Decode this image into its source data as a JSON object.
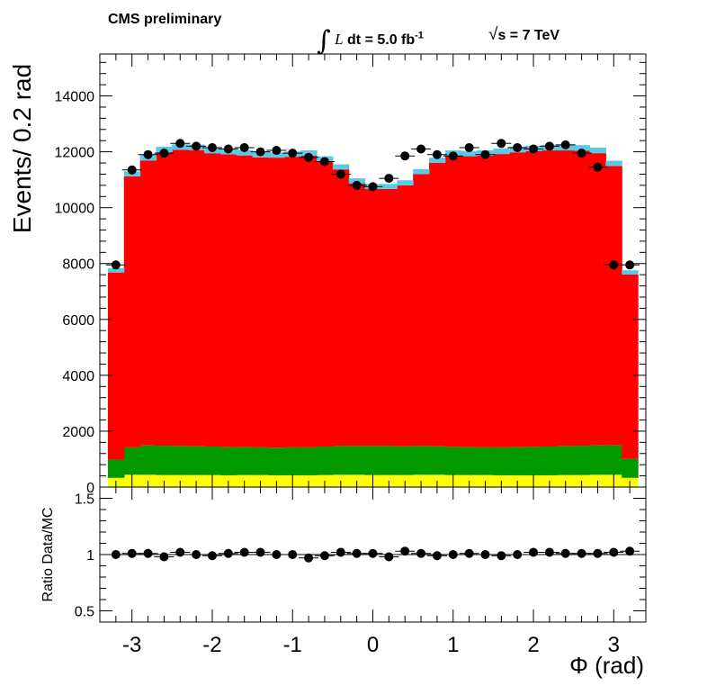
{
  "header": {
    "experiment": "CMS preliminary",
    "lumi_italic": "L",
    "lumi_rest": "dt = 5.0 fb",
    "lumi_exp": "-1",
    "energy_sqrt": "√",
    "energy_rest": "s = 7 TeV"
  },
  "colors": {
    "main_bkg": "#ff0000",
    "green_bkg": "#009900",
    "yellow_bkg": "#ffff00",
    "cyan_bkg": "#5bc8e8",
    "data_marker": "#000000"
  },
  "chart_data": [
    {
      "type": "bar",
      "panel": "main",
      "ylabel": "Events/ 0.2 rad",
      "xlim": [
        -3.4,
        3.4
      ],
      "ylim": [
        0,
        15500
      ],
      "yticks": [
        0,
        2000,
        4000,
        6000,
        8000,
        10000,
        12000,
        14000
      ],
      "ytick_labels": [
        "0",
        "2000",
        "4000",
        "6000",
        "8000",
        "10000",
        "12000",
        "14000"
      ],
      "bin_edges": [
        -3.3,
        -3.1,
        -2.9,
        -2.7,
        -2.5,
        -2.3,
        -2.1,
        -1.9,
        -1.7,
        -1.5,
        -1.3,
        -1.1,
        -0.9,
        -0.7,
        -0.5,
        -0.3,
        -0.1,
        0.1,
        0.3,
        0.5,
        0.7,
        0.9,
        1.1,
        1.3,
        1.5,
        1.7,
        1.9,
        2.1,
        2.3,
        2.5,
        2.7,
        2.9,
        3.1,
        3.3
      ],
      "series": [
        {
          "color_key": "yellow_bkg",
          "values": [
            330,
            440,
            440,
            430,
            430,
            430,
            430,
            420,
            430,
            430,
            420,
            420,
            420,
            430,
            440,
            440,
            430,
            430,
            430,
            440,
            440,
            430,
            430,
            430,
            420,
            420,
            420,
            420,
            430,
            430,
            440,
            440,
            330
          ]
        },
        {
          "color_key": "green_bkg",
          "values": [
            650,
            980,
            1050,
            1050,
            1040,
            1030,
            1020,
            1010,
            1000,
            990,
            990,
            1000,
            1000,
            1020,
            1030,
            1030,
            1040,
            1040,
            1030,
            1030,
            1020,
            1010,
            1000,
            990,
            1000,
            1010,
            1020,
            1030,
            1040,
            1050,
            1050,
            1050,
            680
          ]
        },
        {
          "color_key": "main_bkg",
          "values": [
            6700,
            9700,
            10200,
            10500,
            10600,
            10600,
            10500,
            10480,
            10440,
            10380,
            10380,
            10400,
            10440,
            10200,
            9900,
            9400,
            9200,
            9200,
            9340,
            9730,
            10140,
            10420,
            10410,
            10440,
            10500,
            10550,
            10580,
            10600,
            10580,
            10560,
            10460,
            10000,
            6600
          ]
        },
        {
          "color_key": "cyan_bkg",
          "values": [
            150,
            180,
            200,
            200,
            200,
            200,
            200,
            190,
            190,
            190,
            190,
            190,
            190,
            190,
            180,
            180,
            180,
            180,
            180,
            180,
            190,
            190,
            190,
            190,
            200,
            200,
            200,
            200,
            200,
            200,
            200,
            190,
            150
          ]
        }
      ],
      "data_points": {
        "name": "data",
        "x": [
          -3.2,
          -3.0,
          -2.8,
          -2.6,
          -2.4,
          -2.2,
          -2.0,
          -1.8,
          -1.6,
          -1.4,
          -1.2,
          -1.0,
          -0.8,
          -0.6,
          -0.4,
          -0.2,
          0.0,
          0.2,
          0.4,
          0.6,
          0.8,
          1.0,
          1.2,
          1.4,
          1.6,
          1.8,
          2.0,
          2.2,
          2.4,
          2.6,
          2.8,
          3.0,
          3.2
        ],
        "y": [
          7950,
          11350,
          11900,
          11950,
          12300,
          12200,
          12150,
          12100,
          12150,
          12000,
          12050,
          11950,
          11800,
          11650,
          11200,
          10800,
          10750,
          11050,
          11850,
          12100,
          11900,
          11850,
          12150,
          11900,
          12300,
          12150,
          12100,
          12200,
          12250,
          11950,
          11450,
          7950,
          7950
        ]
      }
    },
    {
      "type": "scatter",
      "panel": "ratio",
      "xlabel": "Φ (rad)",
      "ylabel": "Ratio Data/MC",
      "xlim": [
        -3.4,
        3.4
      ],
      "ylim": [
        0.4,
        1.6
      ],
      "yticks": [
        0.5,
        1,
        1.5
      ],
      "ytick_labels": [
        "0.5",
        "1",
        "1.5"
      ],
      "xticks": [
        -3,
        -2,
        -1,
        0,
        1,
        2,
        3
      ],
      "xtick_labels": [
        "-3",
        "-2",
        "-1",
        "0",
        "1",
        "2",
        "3"
      ],
      "reference_line": 1,
      "x": [
        -3.2,
        -3.0,
        -2.8,
        -2.6,
        -2.4,
        -2.2,
        -2.0,
        -1.8,
        -1.6,
        -1.4,
        -1.2,
        -1.0,
        -0.8,
        -0.6,
        -0.4,
        -0.2,
        0.0,
        0.2,
        0.4,
        0.6,
        0.8,
        1.0,
        1.2,
        1.4,
        1.6,
        1.8,
        2.0,
        2.2,
        2.4,
        2.6,
        2.8,
        3.0,
        3.2
      ],
      "y": [
        1.0,
        1.01,
        1.01,
        0.98,
        1.02,
        1.0,
        0.99,
        1.01,
        1.02,
        1.02,
        1.0,
        1.0,
        0.97,
        0.99,
        1.02,
        1.01,
        1.01,
        0.98,
        1.03,
        1.01,
        0.99,
        1.0,
        1.01,
        1.0,
        0.99,
        1.0,
        1.02,
        1.02,
        1.01,
        1.01,
        1.01,
        1.02,
        1.03
      ]
    }
  ]
}
